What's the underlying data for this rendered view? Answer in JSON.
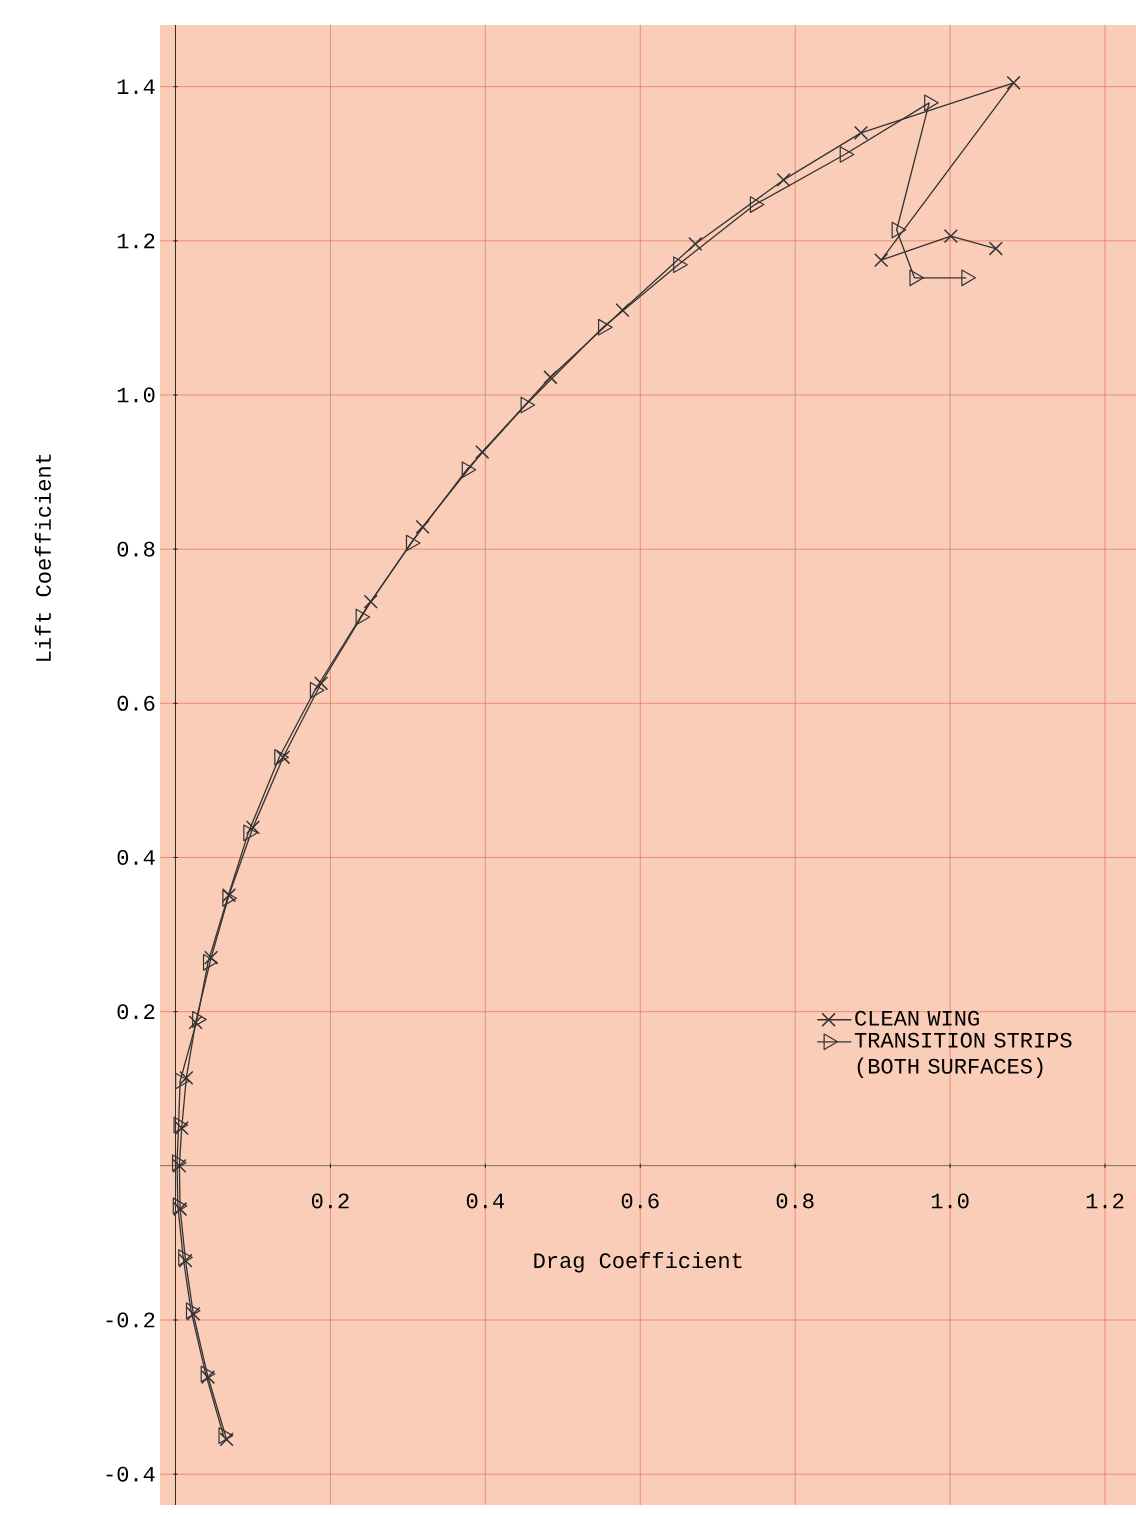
{
  "chart_data": {
    "type": "line",
    "xlabel": "Drag Coefficient",
    "ylabel": "Lift Coefficient",
    "xlim": [
      -0.02,
      1.24
    ],
    "ylim": [
      -0.44,
      1.48
    ],
    "xticks": [
      0.2,
      0.4,
      0.6,
      0.8,
      {
        "value": 1.0,
        "label": "1.0"
      },
      1.2
    ],
    "yticks": [
      -0.4,
      -0.2,
      0.2,
      0.4,
      0.6,
      0.8,
      {
        "value": 1.0,
        "label": "1.0"
      },
      1.2,
      1.4
    ],
    "grid": true,
    "legend": "bottom right",
    "series": [
      {
        "name": "CLEAN WING",
        "color": "#333333",
        "marker": "cross",
        "x": [
          0.066,
          0.042,
          0.023,
          0.013,
          0.006,
          0.005,
          0.008,
          0.014,
          0.026,
          0.046,
          0.069,
          0.1,
          0.139,
          0.188,
          0.252,
          0.319,
          0.396,
          0.484,
          0.577,
          0.671,
          0.785,
          0.885,
          1.082,
          0.911,
          1.001,
          1.059
        ],
        "values": [
          -0.355,
          -0.274,
          -0.192,
          -0.123,
          -0.056,
          0.0,
          0.049,
          0.114,
          0.186,
          0.27,
          0.351,
          0.439,
          0.53,
          0.626,
          0.732,
          0.829,
          0.926,
          1.023,
          1.11,
          1.196,
          1.279,
          1.34,
          1.405,
          1.175,
          1.206,
          1.19
        ]
      },
      {
        "name": "TRANSITION STRIPS (BOTH SURFACES)",
        "color": "#333333",
        "marker": "triangle",
        "x": [
          0.062,
          0.039,
          0.02,
          0.01,
          0.003,
          0.002,
          0.004,
          0.006,
          0.028,
          0.042,
          0.067,
          0.094,
          0.134,
          0.18,
          0.239,
          0.304,
          0.376,
          0.452,
          0.552,
          0.649,
          0.748,
          0.864,
          0.973,
          0.931,
          0.954,
          1.021
        ],
        "values": [
          -0.35,
          -0.27,
          -0.188,
          -0.119,
          -0.052,
          0.004,
          0.053,
          0.11,
          0.19,
          0.264,
          0.347,
          0.432,
          0.53,
          0.617,
          0.712,
          0.808,
          0.903,
          0.987,
          1.088,
          1.169,
          1.247,
          1.312,
          1.379,
          1.214,
          1.152,
          1.152
        ]
      }
    ]
  }
}
